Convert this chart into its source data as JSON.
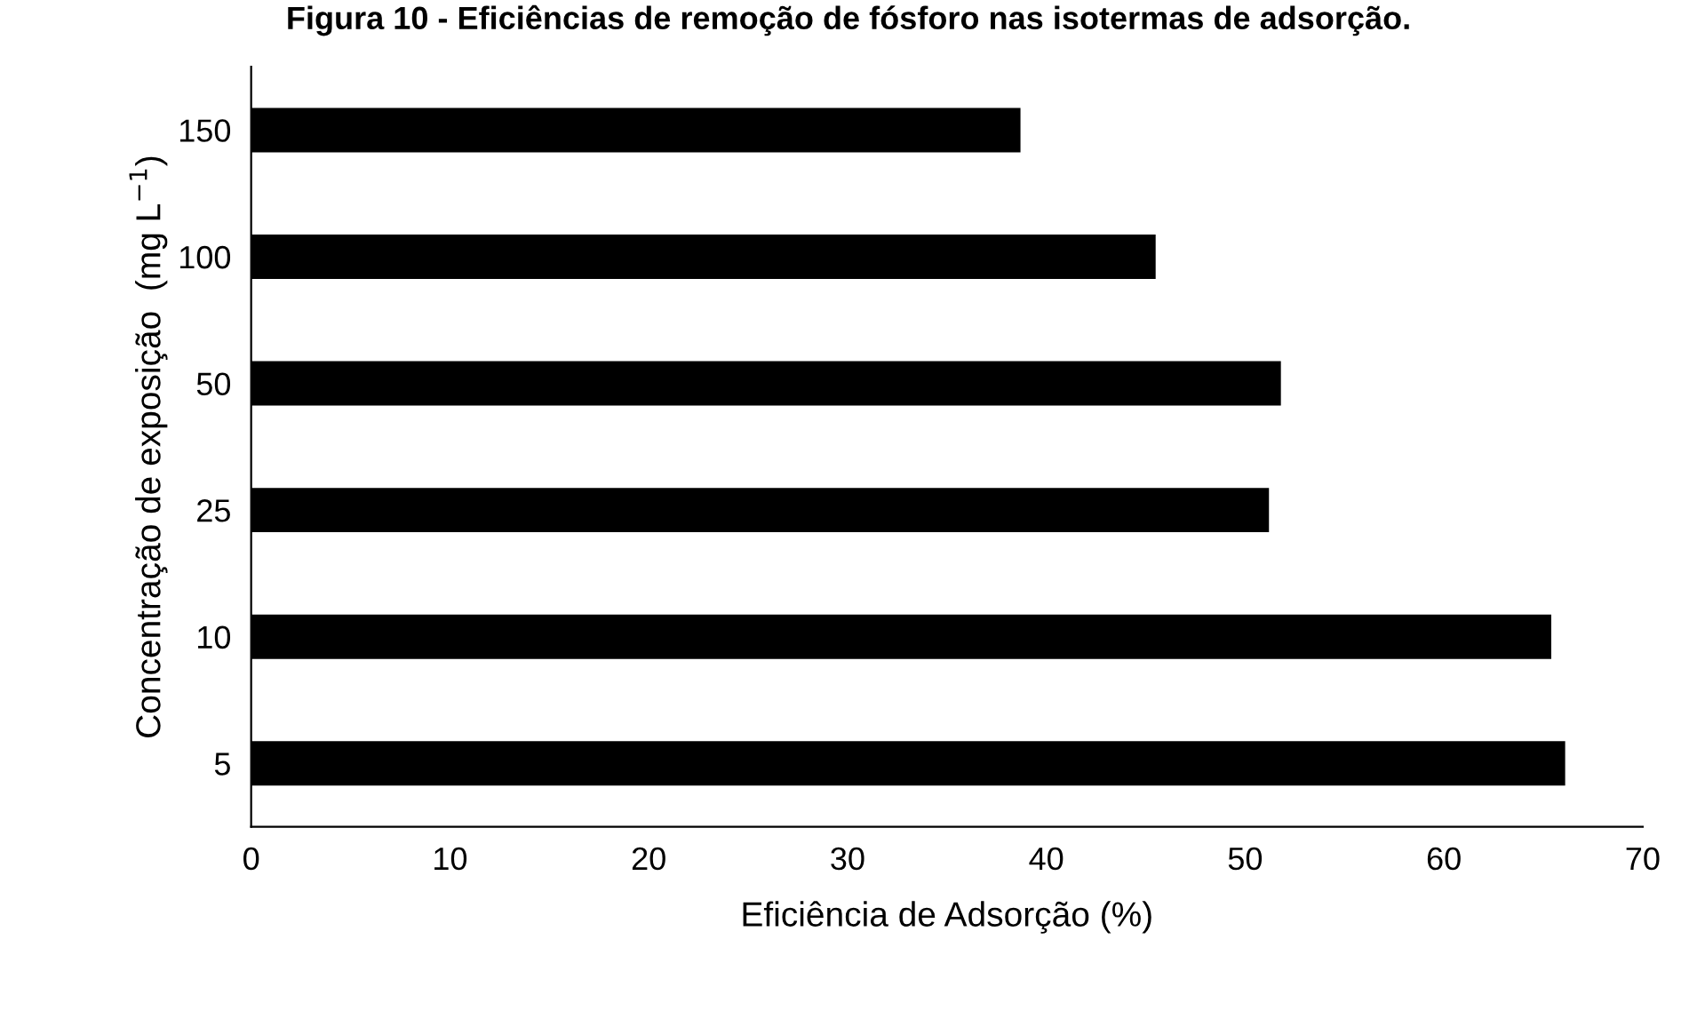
{
  "chart_data": {
    "type": "bar",
    "orientation": "horizontal",
    "title": "Figura 10 - Eficiências de remoção de fósforo nas isotermas de adsorção.",
    "xlabel": "Eficiência de Adsorção (%)",
    "ylabel": "Concentração de exposição  (mg L$^{−1}$)",
    "categories": [
      "150",
      "100",
      "50",
      "25",
      "10",
      "5"
    ],
    "values": [
      38.7,
      45.5,
      51.8,
      51.2,
      65.4,
      66.1
    ],
    "color": "#000000",
    "xlim": [
      0,
      70
    ],
    "xticks": [
      0,
      10,
      20,
      30,
      40,
      50,
      60,
      70
    ],
    "grid": false,
    "legend": false
  }
}
